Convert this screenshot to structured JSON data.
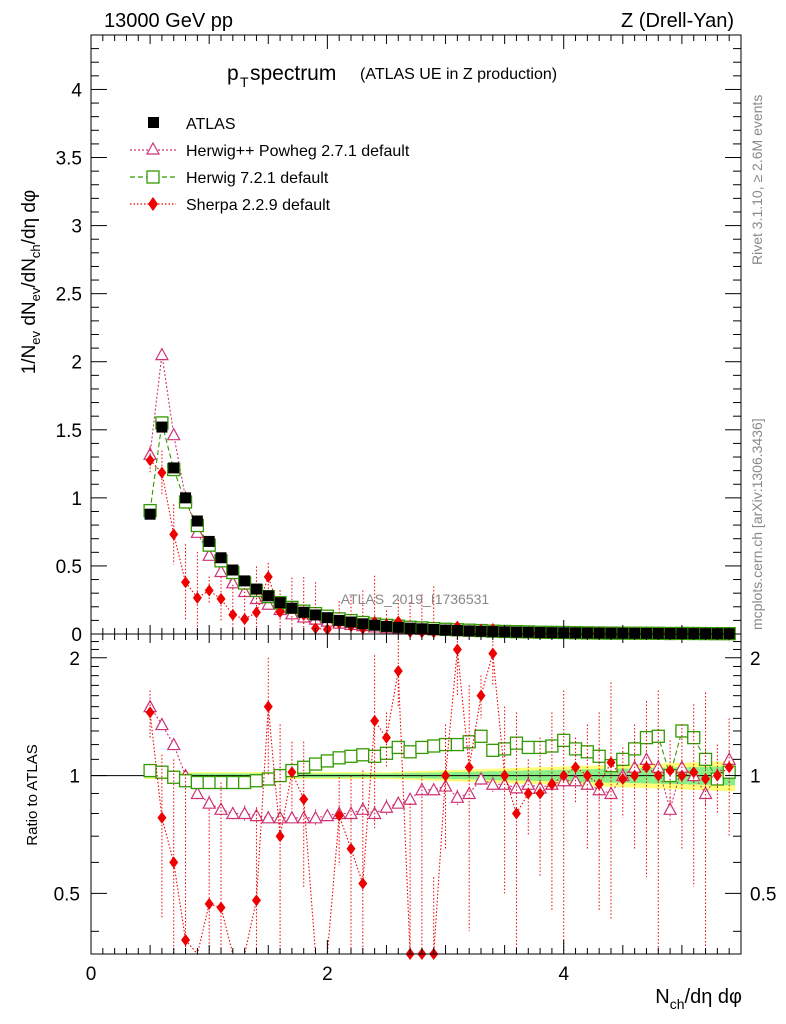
{
  "header": {
    "energy": "13000 GeV pp",
    "process": "Z (Drell-Yan)",
    "title_main": "p",
    "title_sub": "T",
    "title_word": " spectrum",
    "title_extra": " (ATLAS UE in Z production)",
    "watermark": "ATLAS_2019_I1736531",
    "side_top": "Rivet 3.1.10, ≥ 2.6M events",
    "side_bottom": "mcplots.cern.ch [arXiv:1306.3436]"
  },
  "axes": {
    "xlabel": "N_ch/dη dφ",
    "ylabel_top": "1/N_ev dN_ev/dN_ch/dη dφ",
    "ylabel_bottom": "Ratio to ATLAS",
    "xlim": [
      0,
      5.5
    ],
    "ylim_top": [
      0,
      4.4
    ],
    "ylim_bottom": [
      0.35,
      2.3
    ],
    "xticks": [
      "0",
      "2",
      "4"
    ],
    "yticks_top": [
      "0",
      "0.5",
      "1",
      "1.5",
      "2",
      "2.5",
      "3",
      "3.5",
      "4"
    ],
    "yticks_bottom": [
      "0.5",
      "1",
      "2"
    ]
  },
  "legend": [
    {
      "label": "ATLAS",
      "color": "#000000"
    },
    {
      "label": "Herwig++ Powheg 2.7.1 default",
      "color": "#cc3377"
    },
    {
      "label": "Herwig 7.2.1 default",
      "color": "#339900"
    },
    {
      "label": "Sherpa 2.2.9 default",
      "color": "#ee0000"
    }
  ],
  "chart_data": {
    "type": "scatter",
    "x": [
      0.5,
      0.6,
      0.7,
      0.8,
      0.9,
      1.0,
      1.1,
      1.2,
      1.3,
      1.4,
      1.5,
      1.6,
      1.7,
      1.8,
      1.9,
      2.0,
      2.1,
      2.2,
      2.3,
      2.4,
      2.5,
      2.6,
      2.7,
      2.8,
      2.9,
      3.0,
      3.1,
      3.2,
      3.3,
      3.4,
      3.5,
      3.6,
      3.7,
      3.8,
      3.9,
      4.0,
      4.1,
      4.2,
      4.3,
      4.4,
      4.5,
      4.6,
      4.7,
      4.8,
      4.9,
      5.0,
      5.1,
      5.2,
      5.3,
      5.4
    ],
    "series": [
      {
        "name": "ATLAS",
        "values": [
          0.88,
          1.52,
          1.22,
          1.0,
          0.83,
          0.68,
          0.56,
          0.47,
          0.39,
          0.33,
          0.28,
          0.23,
          0.19,
          0.16,
          0.14,
          0.12,
          0.1,
          0.088,
          0.075,
          0.065,
          0.056,
          0.049,
          0.043,
          0.038,
          0.033,
          0.029,
          0.026,
          0.023,
          0.02,
          0.018,
          0.016,
          0.014,
          0.013,
          0.011,
          0.01,
          0.009,
          0.008,
          0.007,
          0.0065,
          0.006,
          0.0055,
          0.005,
          0.0045,
          0.004,
          0.0037,
          0.0034,
          0.003,
          0.0028,
          0.0025,
          0.0023
        ]
      },
      {
        "name": "Herwig++ Powheg 2.7.1 default",
        "ratio": [
          1.5,
          1.35,
          1.2,
          1.0,
          0.9,
          0.85,
          0.82,
          0.8,
          0.8,
          0.79,
          0.78,
          0.78,
          0.78,
          0.78,
          0.78,
          0.79,
          0.8,
          0.8,
          0.82,
          0.8,
          0.83,
          0.85,
          0.87,
          0.92,
          0.92,
          0.94,
          0.88,
          0.9,
          0.98,
          0.95,
          0.95,
          0.93,
          0.95,
          0.93,
          0.95,
          0.97,
          0.97,
          0.95,
          0.92,
          0.9,
          1.0,
          1.05,
          1.1,
          1.05,
          0.82,
          1.05,
          1.0,
          0.9,
          1.0,
          1.1
        ]
      },
      {
        "name": "Herwig 7.2.1 default",
        "ratio": [
          1.03,
          1.02,
          0.99,
          0.97,
          0.96,
          0.96,
          0.96,
          0.96,
          0.96,
          0.97,
          0.98,
          1.0,
          1.03,
          1.05,
          1.07,
          1.09,
          1.11,
          1.12,
          1.13,
          1.12,
          1.14,
          1.18,
          1.15,
          1.18,
          1.19,
          1.2,
          1.2,
          1.22,
          1.26,
          1.16,
          1.17,
          1.21,
          1.18,
          1.18,
          1.19,
          1.23,
          1.17,
          1.15,
          1.12,
          1.06,
          1.1,
          1.17,
          1.25,
          1.26,
          1.0,
          1.3,
          1.25,
          1.1,
          0.98,
          1.02
        ]
      },
      {
        "name": "Sherpa 2.2.9 default",
        "ratio": [
          1.45,
          0.78,
          0.6,
          0.38,
          0.32,
          0.47,
          0.46,
          0.3,
          0.28,
          0.48,
          1.5,
          0.7,
          1.02,
          0.87,
          0.3,
          0.28,
          0.79,
          0.65,
          0.53,
          1.38,
          1.25,
          1.85,
          0.35,
          0.35,
          0.35,
          1.0,
          2.1,
          1.05,
          1.6,
          2.05,
          1.0,
          0.8,
          0.9,
          0.9,
          0.95,
          1.0,
          1.05,
          1.0,
          0.95,
          1.08,
          0.98,
          1.0,
          1.05,
          1.0,
          1.03,
          1.0,
          1.02,
          0.98,
          1.0,
          1.05
        ]
      }
    ],
    "band_inner": "#88ee88",
    "band_outer": "#ffff77"
  }
}
